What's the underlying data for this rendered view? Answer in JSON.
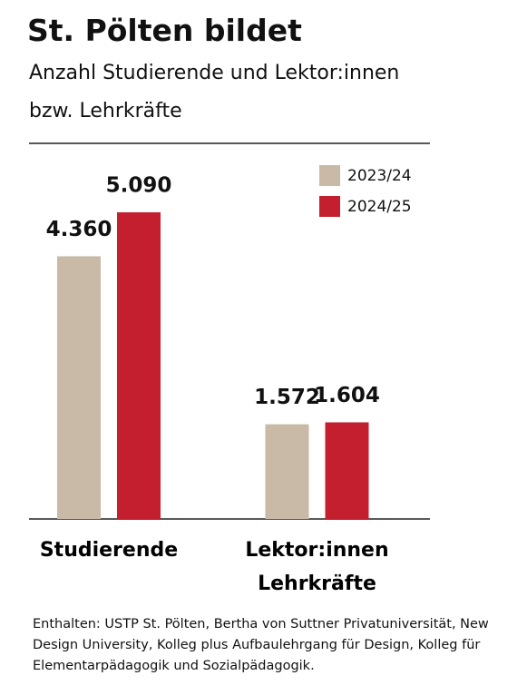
{
  "chart_data": {
    "type": "bar",
    "title": "St. Pölten bildet",
    "subtitle": "Anzahl Studierende und Lektor:innen bzw. Lehrkräfte",
    "categories": [
      "Studierende",
      "Lektor:innen Lehrkräfte"
    ],
    "series": [
      {
        "name": "2023/24",
        "color": "#c9baa7",
        "values": [
          4360,
          1572
        ],
        "value_labels": [
          "4.360",
          "1.572"
        ]
      },
      {
        "name": "2024/25",
        "color": "#c41f2e",
        "values": [
          5090,
          1604
        ],
        "value_labels": [
          "5.090",
          "1.604"
        ]
      }
    ],
    "note": "Enthalten: USTP St. Pölten, Bertha von Suttner Privatuniversität, New Design University, Kolleg plus Aufbaulehrgang für Design, Kolleg für Elementarpädagogik und Sozialpädagogik."
  }
}
